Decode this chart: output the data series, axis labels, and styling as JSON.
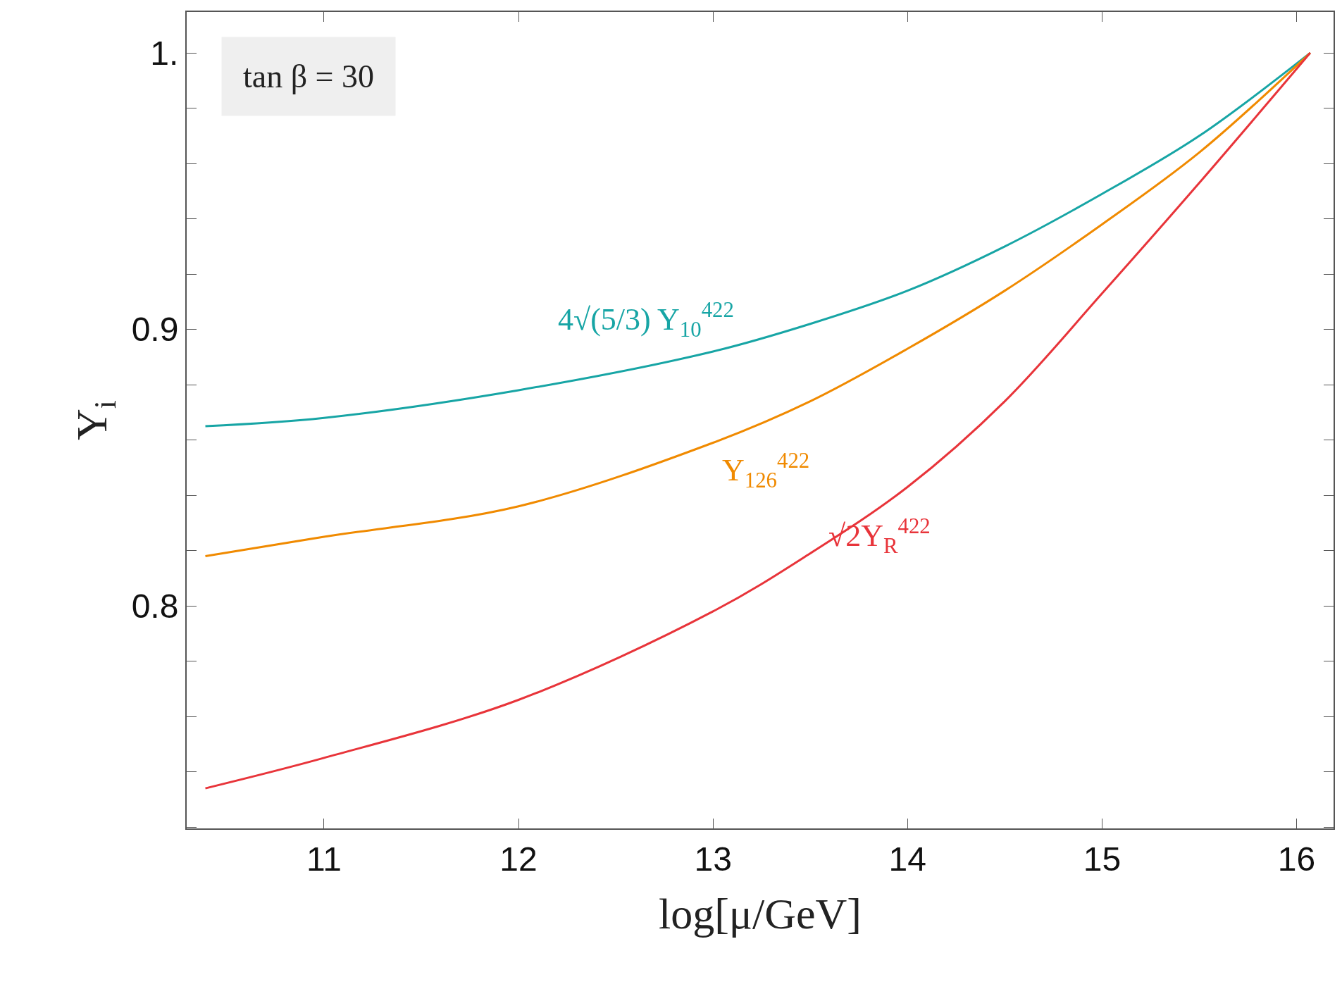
{
  "chart_data": {
    "type": "line",
    "xlabel": "log[μ/GeV]",
    "ylabel": "Y$_{i}$",
    "x": [
      10.39,
      11,
      12,
      13,
      13.5,
      14,
      14.5,
      15,
      15.5,
      16.07
    ],
    "series": [
      {
        "name": "4√(5/3) Y$_{10}$$^{422}$",
        "color": "#17a5a5",
        "values": [
          0.865,
          0.868,
          0.878,
          0.892,
          0.902,
          0.914,
          0.93,
          0.949,
          0.97,
          1.0
        ]
      },
      {
        "name": "Y$_{126}$$^{422}$",
        "color": "#f08a00",
        "values": [
          0.818,
          0.825,
          0.836,
          0.859,
          0.874,
          0.893,
          0.914,
          0.938,
          0.964,
          1.0
        ]
      },
      {
        "name": "√2Y$_{R}$$^{422}$",
        "color": "#e8343a",
        "values": [
          0.734,
          0.745,
          0.766,
          0.798,
          0.819,
          0.843,
          0.874,
          0.913,
          0.953,
          1.0
        ]
      }
    ],
    "annotations": [
      "tan β = 30"
    ],
    "xlim": [
      10.294,
      16.19
    ],
    "xticks": [
      11,
      12,
      13,
      14,
      15,
      16
    ],
    "ylim": [
      0.7195,
      1.0148
    ],
    "yticks": [
      {
        "value": 0.72,
        "label": null
      },
      {
        "value": 0.74,
        "label": null
      },
      {
        "value": 0.76,
        "label": null
      },
      {
        "value": 0.78,
        "label": null
      },
      0.8,
      {
        "value": 0.82,
        "label": null
      },
      {
        "value": 0.84,
        "label": null
      },
      {
        "value": 0.86,
        "label": null
      },
      {
        "value": 0.88,
        "label": null
      },
      0.9,
      {
        "value": 0.92,
        "label": null
      },
      {
        "value": 0.94,
        "label": null
      },
      {
        "value": 0.96,
        "label": null
      },
      {
        "value": 0.98,
        "label": null
      },
      {
        "value": 1,
        "label": "1."
      }
    ],
    "legend": false,
    "line_style": "solid",
    "marker": "none"
  }
}
